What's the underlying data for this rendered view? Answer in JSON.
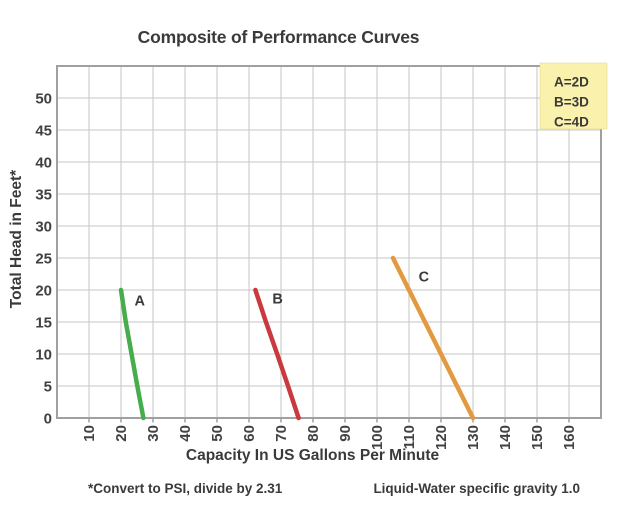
{
  "title": "Composite of Performance Curves",
  "footnotes": {
    "left": "*Convert to PSI, divide by 2.31",
    "right": "Liquid-Water specific gravity 1.0"
  },
  "colors": {
    "text": "#3a3a3c",
    "grid": "#c6c6c6",
    "border": "#a0a0a0",
    "tick_label": "#414141",
    "legend_bg": "#faf1ac",
    "curve_a": "#45ad4b",
    "curve_b": "#c9393e",
    "curve_c": "#e39940"
  },
  "chart_data": {
    "type": "line",
    "title": "Composite of Performance Curves",
    "xlabel": "Capacity In US Gallons Per Minute",
    "ylabel": "Total Head in Feet*",
    "xlim": [
      0,
      170
    ],
    "ylim": [
      0,
      55
    ],
    "x_ticks": [
      10,
      20,
      30,
      40,
      50,
      60,
      70,
      80,
      90,
      100,
      110,
      120,
      130,
      140,
      150,
      160
    ],
    "y_ticks": [
      0,
      5,
      10,
      15,
      20,
      25,
      30,
      35,
      40,
      45,
      50
    ],
    "x_grid_step": 10,
    "y_grid_step": 5,
    "grid": true,
    "x_tick_label_rotation": -90,
    "series": [
      {
        "name": "A",
        "color": "#45ad4b",
        "points": [
          [
            20,
            20
          ],
          [
            21.5,
            15
          ],
          [
            23.3,
            10
          ],
          [
            25.1,
            5
          ],
          [
            27,
            0
          ]
        ],
        "label_at": [
          24.2,
          17.6
        ]
      },
      {
        "name": "B",
        "color": "#c9393e",
        "points": [
          [
            62,
            20
          ],
          [
            65.3,
            15
          ],
          [
            68.8,
            10
          ],
          [
            72.2,
            5
          ],
          [
            75.5,
            0
          ]
        ],
        "label_at": [
          67.3,
          17.9
        ]
      },
      {
        "name": "C",
        "color": "#e39940",
        "points": [
          [
            105,
            25
          ],
          [
            110,
            20
          ],
          [
            115,
            15
          ],
          [
            120,
            10
          ],
          [
            125,
            5
          ],
          [
            130,
            0
          ]
        ],
        "label_at": [
          113,
          21.3
        ]
      }
    ],
    "legend": {
      "position": "top-right",
      "bg": "#faf1ac",
      "entries": [
        "A=2D",
        "B=3D",
        "C=4D"
      ]
    }
  }
}
